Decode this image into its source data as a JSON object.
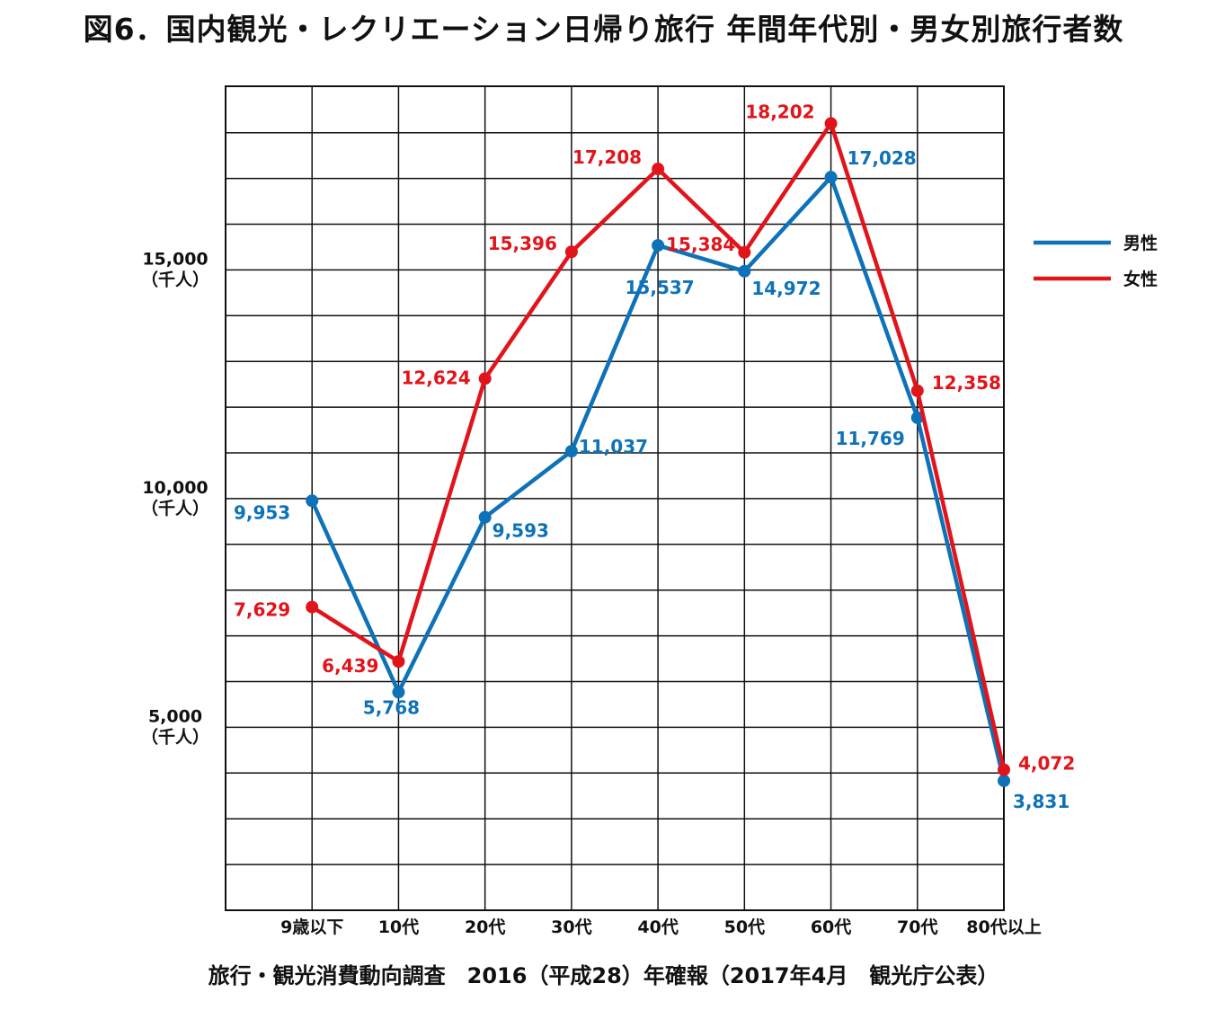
{
  "title": "図6．国内観光・レクリエーション日帰り旅行 年間年代別・男女別旅行者数",
  "source": "旅行・観光消費動向調査　2016（平成28）年確報（2017年4月　観光庁公表）",
  "chart_data": {
    "type": "line",
    "categories": [
      "9歳以下",
      "10代",
      "20代",
      "30代",
      "40代",
      "50代",
      "60代",
      "70代",
      "80代以上"
    ],
    "unit": "（千人）",
    "ylim": [
      1000,
      19000
    ],
    "ytick_labels": [
      {
        "value": 15000,
        "label": "15,000",
        "unit": "（千人）"
      },
      {
        "value": 10000,
        "label": "10,000",
        "unit": "（千人）"
      },
      {
        "value": 5000,
        "label": "5,000",
        "unit": "（千人）"
      }
    ],
    "grid": true,
    "legend_position": "right",
    "series": [
      {
        "name": "男性",
        "color": "#0e72b8",
        "values": [
          9953,
          5768,
          9593,
          11037,
          15537,
          14972,
          17028,
          11769,
          3831
        ],
        "labels": [
          "9,953",
          "5,768",
          "9,593",
          "11,037",
          "15,537",
          "14,972",
          "17,028",
          "11,769",
          "3,831"
        ]
      },
      {
        "name": "女性",
        "color": "#e2141b",
        "values": [
          7629,
          6439,
          12624,
          15396,
          17208,
          15384,
          18202,
          12358,
          4072
        ],
        "labels": [
          "7,629",
          "6,439",
          "12,624",
          "15,396",
          "17,208",
          "15,384",
          "18,202",
          "12,358",
          "4,072"
        ]
      }
    ]
  }
}
